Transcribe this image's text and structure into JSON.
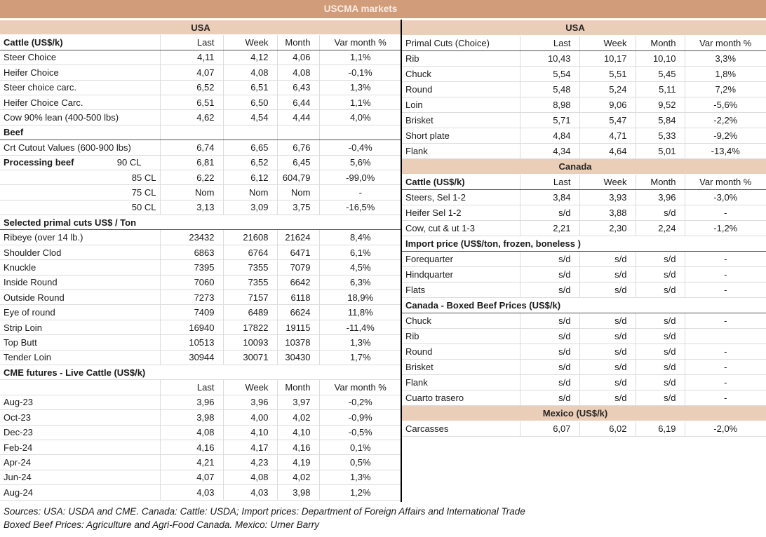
{
  "title": "USCMA markets",
  "colors": {
    "title_bar": "#d09c7a",
    "region_band": "#ebceb8"
  },
  "footer": {
    "line1": "Sources: USA: USDA and CME. Canada: Cattle: USDA; Import prices: Department of Foreign Affairs and International Trade",
    "line2": "Boxed Beef Prices: Agriculture and Agri-Food Canada. Mexico: Urner Barry"
  },
  "left": {
    "rows": [
      {
        "type": "band",
        "label": "USA"
      },
      {
        "type": "header",
        "label": "Cattle (US$/k)",
        "cols": [
          "Last",
          "Week",
          "Month",
          "Var month %"
        ]
      },
      {
        "type": "data",
        "label": "Steer Choice",
        "values": [
          "4,11",
          "4,12",
          "4,06",
          "1,1%"
        ]
      },
      {
        "type": "data",
        "label": "Heifer Choice",
        "values": [
          "4,07",
          "4,08",
          "4,08",
          "-0,1%"
        ]
      },
      {
        "type": "data",
        "label": "Steer choice carc.",
        "values": [
          "6,52",
          "6,51",
          "6,43",
          "1,3%"
        ]
      },
      {
        "type": "data",
        "label": "Heifer Choice Carc.",
        "values": [
          "6,51",
          "6,50",
          "6,44",
          "1,1%"
        ]
      },
      {
        "type": "data",
        "label": "Cow 90% lean (400-500 lbs)",
        "values": [
          "4,62",
          "4,54",
          "4,44",
          "4,0%"
        ]
      },
      {
        "type": "section",
        "label": "Beef"
      },
      {
        "type": "data",
        "label": "Crt Cutout Values (600-900 lbs)",
        "values": [
          "6,74",
          "6,65",
          "6,76",
          "-0,4%"
        ]
      },
      {
        "type": "split",
        "label": "Processing beef",
        "sub": "90 CL",
        "values": [
          "6,81",
          "6,52",
          "6,45",
          "5,6%"
        ]
      },
      {
        "type": "data-r",
        "label": "85 CL",
        "values": [
          "6,22",
          "6,12",
          "604,79",
          "-99,0%"
        ]
      },
      {
        "type": "data-r",
        "label": "75 CL",
        "values": [
          "Nom",
          "Nom",
          "Nom",
          "-"
        ]
      },
      {
        "type": "data-r",
        "label": "50 CL",
        "values": [
          "3,13",
          "3,09",
          "3,75",
          "-16,5%"
        ]
      },
      {
        "type": "section",
        "label": "Selected primal cuts US$ / Ton"
      },
      {
        "type": "data",
        "label": "Ribeye (over 14 lb.)",
        "values": [
          "23432",
          "21608",
          "21624",
          "8,4%"
        ]
      },
      {
        "type": "data",
        "label": "Shoulder Clod",
        "values": [
          "6863",
          "6764",
          "6471",
          "6,1%"
        ]
      },
      {
        "type": "data",
        "label": "Knuckle",
        "values": [
          "7395",
          "7355",
          "7079",
          "4,5%"
        ]
      },
      {
        "type": "data",
        "label": "Inside Round",
        "values": [
          "7060",
          "7355",
          "6642",
          "6,3%"
        ]
      },
      {
        "type": "data",
        "label": "Outside Round",
        "values": [
          "7273",
          "7157",
          "6118",
          "18,9%"
        ]
      },
      {
        "type": "data",
        "label": "Eye of round",
        "values": [
          "7409",
          "6489",
          "6624",
          "11,8%"
        ]
      },
      {
        "type": "data",
        "label": "Strip Loin",
        "values": [
          "16940",
          "17822",
          "19115",
          "-11,4%"
        ]
      },
      {
        "type": "data",
        "label": "Top Butt",
        "values": [
          "10513",
          "10093",
          "10378",
          "1,3%"
        ]
      },
      {
        "type": "data",
        "label": "Tender Loin",
        "values": [
          "30944",
          "30071",
          "30430",
          "1,7%"
        ]
      },
      {
        "type": "section2",
        "label": "CME futures - Live Cattle (US$/k)"
      },
      {
        "type": "header2",
        "label": "",
        "cols": [
          "Last",
          "Week",
          "Month",
          "Var month %"
        ]
      },
      {
        "type": "data",
        "label": "Aug-23",
        "values": [
          "3,96",
          "3,96",
          "3,97",
          "-0,2%"
        ]
      },
      {
        "type": "data",
        "label": "Oct-23",
        "values": [
          "3,98",
          "4,00",
          "4,02",
          "-0,9%"
        ]
      },
      {
        "type": "data",
        "label": "Dec-23",
        "values": [
          "4,08",
          "4,10",
          "4,10",
          "-0,5%"
        ]
      },
      {
        "type": "data",
        "label": "Feb-24",
        "values": [
          "4,16",
          "4,17",
          "4,16",
          "0,1%"
        ]
      },
      {
        "type": "data",
        "label": "Apr-24",
        "values": [
          "4,21",
          "4,23",
          "4,19",
          "0,5%"
        ]
      },
      {
        "type": "data",
        "label": "Jun-24",
        "values": [
          "4,07",
          "4,08",
          "4,02",
          "1,3%"
        ]
      },
      {
        "type": "data",
        "label": "Aug-24",
        "values": [
          "4,03",
          "4,03",
          "3,98",
          "1,2%"
        ]
      }
    ]
  },
  "right": {
    "rows": [
      {
        "type": "band",
        "label": "USA"
      },
      {
        "type": "header",
        "label": "Primal Cuts (Choice)",
        "label_bold": false,
        "cols": [
          "Last",
          "Week",
          "Month",
          "Var month %"
        ]
      },
      {
        "type": "data",
        "label": "Rib",
        "values": [
          "10,43",
          "10,17",
          "10,10",
          "3,3%"
        ]
      },
      {
        "type": "data",
        "label": "Chuck",
        "values": [
          "5,54",
          "5,51",
          "5,45",
          "1,8%"
        ]
      },
      {
        "type": "data",
        "label": "Round",
        "values": [
          "5,48",
          "5,24",
          "5,11",
          "7,2%"
        ]
      },
      {
        "type": "data",
        "label": "Loin",
        "values": [
          "8,98",
          "9,06",
          "9,52",
          "-5,6%"
        ]
      },
      {
        "type": "data",
        "label": "Brisket",
        "values": [
          "5,71",
          "5,47",
          "5,84",
          "-2,2%"
        ]
      },
      {
        "type": "data",
        "label": "Short plate",
        "values": [
          "4,84",
          "4,71",
          "5,33",
          "-9,2%"
        ]
      },
      {
        "type": "data",
        "label": "Flank",
        "values": [
          "4,34",
          "4,64",
          "5,01",
          "-13,4%"
        ]
      },
      {
        "type": "band",
        "label": "Canada"
      },
      {
        "type": "header",
        "label": "Cattle (US$/k)",
        "cols": [
          "Last",
          "Week",
          "Month",
          "Var month %"
        ]
      },
      {
        "type": "data",
        "label": "Steers, Sel 1-2",
        "values": [
          "3,84",
          "3,93",
          "3,96",
          "-3,0%"
        ]
      },
      {
        "type": "data",
        "label": "Heifer Sel 1-2",
        "values": [
          "s/d",
          "3,88",
          "s/d",
          "-"
        ]
      },
      {
        "type": "data",
        "label": "Cow, cut & ut 1-3",
        "values": [
          "2,21",
          "2,30",
          "2,24",
          "-1,2%"
        ]
      },
      {
        "type": "section",
        "label": "Import price (US$/ton, frozen, boneless )"
      },
      {
        "type": "data",
        "label": "Forequarter",
        "values": [
          "s/d",
          "s/d",
          "s/d",
          "-"
        ]
      },
      {
        "type": "data",
        "label": "Hindquarter",
        "values": [
          "s/d",
          "s/d",
          "s/d",
          "-"
        ]
      },
      {
        "type": "data",
        "label": "Flats",
        "values": [
          "s/d",
          "s/d",
          "s/d",
          "-"
        ]
      },
      {
        "type": "section",
        "label": "Canada - Boxed Beef Prices (US$/k)"
      },
      {
        "type": "data",
        "label": "Chuck",
        "values": [
          "s/d",
          "s/d",
          "s/d",
          "-"
        ]
      },
      {
        "type": "data",
        "label": "Rib",
        "values": [
          "s/d",
          "s/d",
          "s/d",
          ""
        ]
      },
      {
        "type": "data",
        "label": "Round",
        "values": [
          "s/d",
          "s/d",
          "s/d",
          "-"
        ]
      },
      {
        "type": "data",
        "label": "Brisket",
        "values": [
          "s/d",
          "s/d",
          "s/d",
          "-"
        ]
      },
      {
        "type": "data",
        "label": "Flank",
        "values": [
          "s/d",
          "s/d",
          "s/d",
          "-"
        ]
      },
      {
        "type": "data",
        "label": "Cuarto trasero",
        "values": [
          "s/d",
          "s/d",
          "s/d",
          "-"
        ]
      },
      {
        "type": "band",
        "label": "Mexico (US$/k)"
      },
      {
        "type": "data",
        "label": "Carcasses",
        "values": [
          "6,07",
          "6,02",
          "6,19",
          "-2,0%"
        ]
      }
    ]
  }
}
